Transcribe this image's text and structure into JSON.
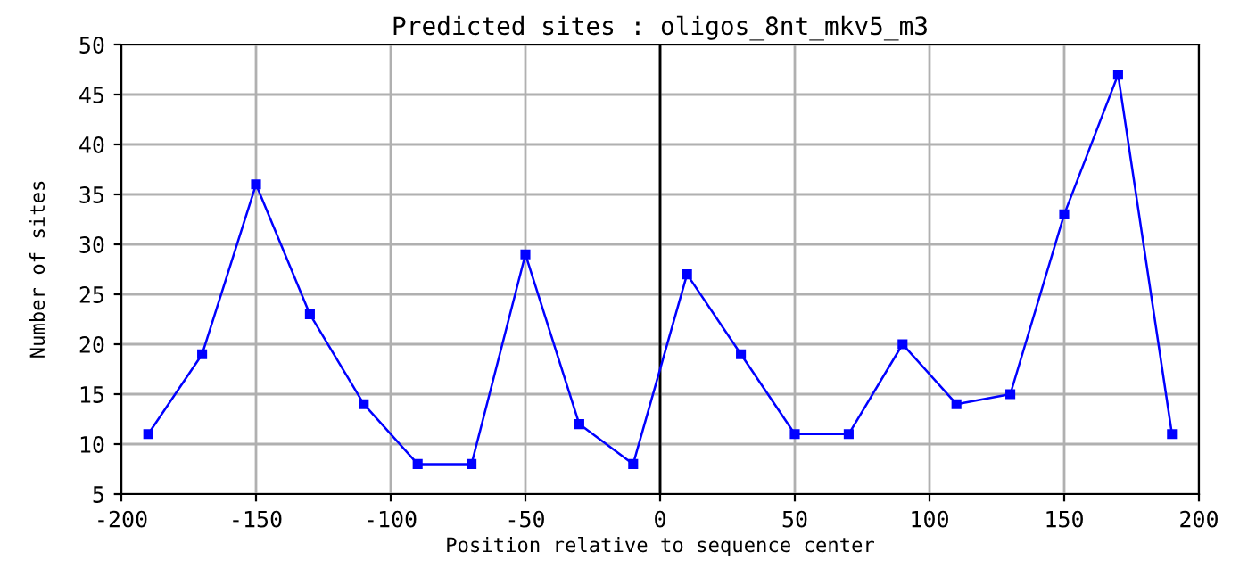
{
  "chart_data": {
    "type": "line",
    "title": "Predicted sites : oligos_8nt_mkv5_m3",
    "xlabel": "Position relative to sequence center",
    "ylabel": "Number of sites",
    "x": [
      -190,
      -170,
      -150,
      -130,
      -110,
      -90,
      -70,
      -50,
      -30,
      -10,
      10,
      30,
      50,
      70,
      90,
      110,
      130,
      150,
      170,
      190
    ],
    "series": [
      {
        "color": "#0000ff",
        "values": [
          11,
          19,
          36,
          23,
          14,
          8,
          8,
          29,
          12,
          8,
          27,
          19,
          11,
          11,
          20,
          14,
          15,
          33,
          47,
          11
        ]
      }
    ],
    "xlim": [
      -200,
      200
    ],
    "xticks": [
      -200,
      -150,
      -100,
      -50,
      0,
      50,
      100,
      150,
      200
    ],
    "ylim": [
      5,
      50
    ],
    "yticks": [
      5,
      10,
      15,
      20,
      25,
      30,
      35,
      40,
      45,
      50
    ],
    "ref_lines": [
      {
        "axis": "x",
        "value": 0,
        "color": "#000000"
      }
    ],
    "grid": true,
    "marker": "square",
    "line_style": "solid"
  }
}
